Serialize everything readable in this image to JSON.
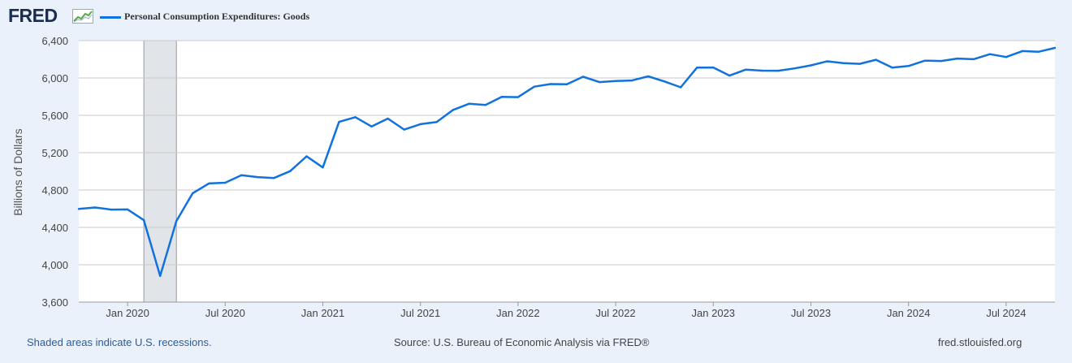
{
  "header": {
    "logo_text": "FRED",
    "logo_icon": "line-chart-icon"
  },
  "legend": {
    "label": "Personal Consumption Expenditures: Goods",
    "color": "#1172dd"
  },
  "chart_data": {
    "type": "line",
    "title": "",
    "ylabel": "Billions of Dollars",
    "xlabel": "",
    "ylim": [
      3600,
      6400
    ],
    "yticks": [
      3600,
      4000,
      4400,
      4800,
      5200,
      5600,
      6000,
      6400
    ],
    "ytick_labels": [
      "3,600",
      "4,000",
      "4,400",
      "4,800",
      "5,200",
      "5,600",
      "6,000",
      "6,400"
    ],
    "xlim": [
      "2019-10",
      "2024-10"
    ],
    "xticks": [
      "2020-01",
      "2020-07",
      "2021-01",
      "2021-07",
      "2022-01",
      "2022-07",
      "2023-01",
      "2023-07",
      "2024-01",
      "2024-07"
    ],
    "xtick_labels": [
      "Jan 2020",
      "Jul 2020",
      "Jan 2021",
      "Jul 2021",
      "Jan 2022",
      "Jul 2022",
      "Jan 2023",
      "Jul 2023",
      "Jan 2024",
      "Jul 2024"
    ],
    "grid": true,
    "recession": {
      "start": "2020-02",
      "end": "2020-04",
      "color": "#e1e5e9"
    },
    "series": [
      {
        "name": "Personal Consumption Expenditures: Goods",
        "color": "#1172dd",
        "x": [
          "2019-10",
          "2019-11",
          "2019-12",
          "2020-01",
          "2020-02",
          "2020-03",
          "2020-04",
          "2020-05",
          "2020-06",
          "2020-07",
          "2020-08",
          "2020-09",
          "2020-10",
          "2020-11",
          "2020-12",
          "2021-01",
          "2021-02",
          "2021-03",
          "2021-04",
          "2021-05",
          "2021-06",
          "2021-07",
          "2021-08",
          "2021-09",
          "2021-10",
          "2021-11",
          "2021-12",
          "2022-01",
          "2022-02",
          "2022-03",
          "2022-04",
          "2022-05",
          "2022-06",
          "2022-07",
          "2022-08",
          "2022-09",
          "2022-10",
          "2022-11",
          "2022-12",
          "2023-01",
          "2023-02",
          "2023-03",
          "2023-04",
          "2023-05",
          "2023-06",
          "2023-07",
          "2023-08",
          "2023-09",
          "2023-10",
          "2023-11",
          "2023-12",
          "2024-01",
          "2024-02",
          "2024-03",
          "2024-04",
          "2024-05",
          "2024-06",
          "2024-07",
          "2024-08",
          "2024-09",
          "2024-10"
        ],
        "values": [
          4597,
          4613,
          4590,
          4592,
          4477,
          3880,
          4468,
          4765,
          4870,
          4878,
          4958,
          4938,
          4929,
          5003,
          5161,
          5042,
          5530,
          5580,
          5480,
          5565,
          5447,
          5505,
          5528,
          5657,
          5724,
          5710,
          5797,
          5795,
          5907,
          5935,
          5932,
          6013,
          5956,
          5968,
          5973,
          6017,
          5963,
          5900,
          6111,
          6112,
          6025,
          6090,
          6078,
          6077,
          6103,
          6135,
          6178,
          6158,
          6151,
          6195,
          6111,
          6128,
          6185,
          6182,
          6208,
          6201,
          6255,
          6224,
          6288,
          6281,
          6322
        ]
      }
    ]
  },
  "footer": {
    "recession_note": "Shaded areas indicate U.S. recessions.",
    "source": "Source: U.S. Bureau of Economic Analysis via FRED®",
    "site": "fred.stlouisfed.org"
  }
}
